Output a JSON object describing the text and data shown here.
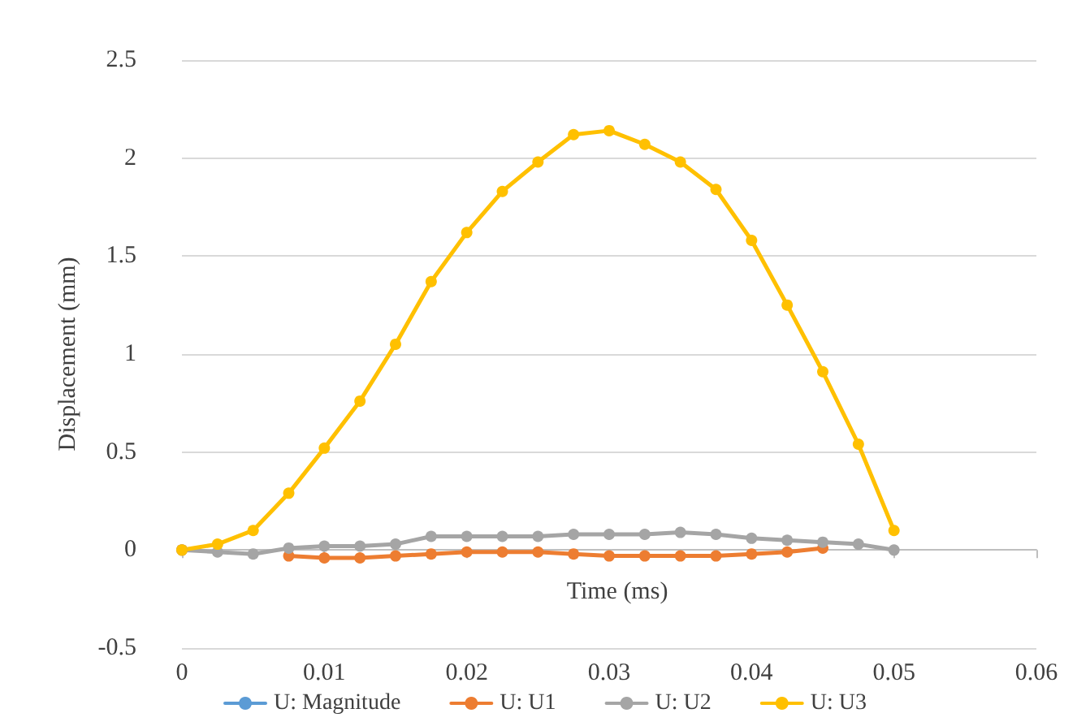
{
  "chart_data": {
    "type": "line",
    "xlabel": "Time (ms)",
    "ylabel": "Displacement (mm)",
    "x": [
      0,
      0.0025,
      0.005,
      0.0075,
      0.01,
      0.0125,
      0.015,
      0.0175,
      0.02,
      0.0225,
      0.025,
      0.0275,
      0.03,
      0.0325,
      0.035,
      0.0375,
      0.04,
      0.0425,
      0.045,
      0.0475,
      0.05
    ],
    "series": [
      {
        "name": "U: Magnitude",
        "color": "#5b9bd5",
        "values": [
          null,
          null,
          null,
          null,
          null,
          null,
          null,
          null,
          null,
          null,
          null,
          null,
          null,
          null,
          null,
          null,
          null,
          null,
          null,
          null,
          null
        ]
      },
      {
        "name": "U: U1",
        "color": "#ed7d31",
        "values": [
          0,
          null,
          null,
          -0.03,
          -0.04,
          -0.04,
          -0.03,
          -0.02,
          -0.01,
          -0.01,
          -0.01,
          -0.02,
          -0.03,
          -0.03,
          -0.03,
          -0.03,
          -0.02,
          -0.01,
          0.01,
          null,
          null
        ]
      },
      {
        "name": "U: U2",
        "color": "#a5a5a5",
        "values": [
          0,
          -0.01,
          -0.02,
          0.01,
          0.02,
          0.02,
          0.03,
          0.07,
          0.07,
          0.07,
          0.07,
          0.08,
          0.08,
          0.08,
          0.09,
          0.08,
          0.06,
          0.05,
          0.04,
          0.03,
          0
        ]
      },
      {
        "name": "U: U3",
        "color": "#ffc000",
        "values": [
          0,
          0.03,
          0.1,
          0.29,
          0.52,
          0.76,
          1.05,
          1.37,
          1.62,
          1.83,
          1.98,
          2.12,
          2.14,
          2.07,
          1.98,
          1.84,
          1.58,
          1.25,
          0.91,
          0.54,
          0.1
        ]
      }
    ],
    "xlim": [
      0,
      0.06
    ],
    "xticks": [
      0,
      0.01,
      0.02,
      0.03,
      0.04,
      0.05,
      0.06
    ],
    "ylim": [
      -0.5,
      2.5
    ],
    "yticks": [
      -0.5,
      0,
      0.5,
      1,
      1.5,
      2,
      2.5
    ],
    "grid": "y",
    "legend": "bottom",
    "marker": "circle",
    "line_style": "solid"
  }
}
